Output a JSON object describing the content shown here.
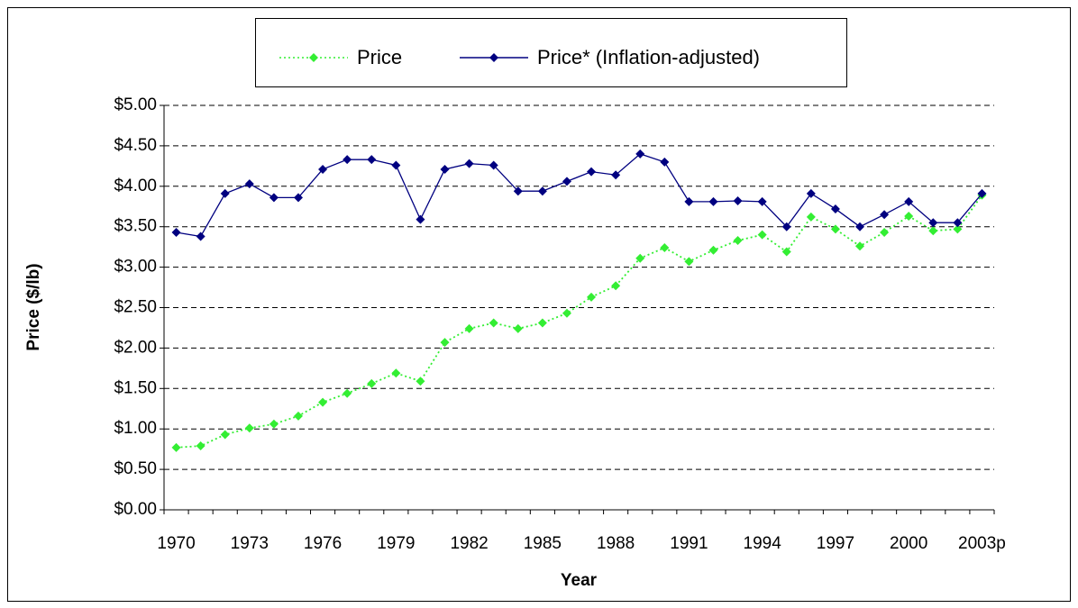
{
  "chart_data": {
    "type": "line",
    "x_label": "Year",
    "y_label": "Price ($/lb)",
    "categories": [
      "1970",
      null,
      null,
      "1973",
      null,
      null,
      "1976",
      null,
      null,
      "1979",
      null,
      null,
      "1982",
      null,
      null,
      "1985",
      null,
      null,
      "1988",
      null,
      null,
      "1991",
      null,
      null,
      "1994",
      null,
      null,
      "1997",
      null,
      null,
      "2000",
      null,
      null,
      "2003p"
    ],
    "series": [
      {
        "name": "Price",
        "color": "#33ee33",
        "style": "dotted",
        "values": [
          0.77,
          0.79,
          0.93,
          1.01,
          1.06,
          1.16,
          1.33,
          1.44,
          1.56,
          1.69,
          1.59,
          2.07,
          2.24,
          2.31,
          2.24,
          2.31,
          2.43,
          2.63,
          2.77,
          3.11,
          3.24,
          3.07,
          3.21,
          3.33,
          3.4,
          3.19,
          3.62,
          3.47,
          3.26,
          3.43,
          3.63,
          3.45,
          3.47,
          3.89
        ]
      },
      {
        "name": "Price* (Inflation-adjusted)",
        "color": "#000080",
        "style": "solid",
        "values": [
          3.43,
          3.38,
          3.91,
          4.03,
          3.86,
          3.86,
          4.21,
          4.33,
          4.33,
          4.26,
          3.59,
          4.21,
          4.28,
          4.26,
          3.94,
          3.94,
          4.06,
          4.18,
          4.14,
          4.4,
          4.3,
          3.81,
          3.81,
          3.82,
          3.81,
          3.5,
          3.91,
          3.72,
          3.5,
          3.65,
          3.81,
          3.55,
          3.55,
          3.91
        ]
      }
    ],
    "ylim": [
      0,
      5
    ],
    "yticks": [
      {
        "value": 0,
        "label": "$0.00"
      },
      {
        "value": 0.5,
        "label": "$0.50"
      },
      {
        "value": 1,
        "label": "$1.00"
      },
      {
        "value": 1.5,
        "label": "$1.50"
      },
      {
        "value": 2,
        "label": "$2.00"
      },
      {
        "value": 2.5,
        "label": "$2.50"
      },
      {
        "value": 3,
        "label": "$3.00"
      },
      {
        "value": 3.5,
        "label": "$3.50"
      },
      {
        "value": 4,
        "label": "$4.00"
      },
      {
        "value": 4.5,
        "label": "$4.50"
      },
      {
        "value": 5,
        "label": "$5.00"
      }
    ],
    "grid": true,
    "legend": "top"
  }
}
